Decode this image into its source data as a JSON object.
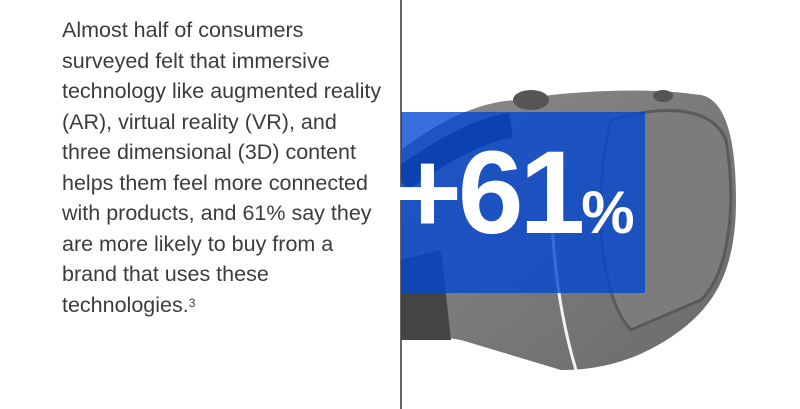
{
  "body_text": "Almost half of consumers surveyed felt that immersive technology like augmented reality (AR), virtual reality (VR), and three dimensional (3D) content helps them feel more connected with products, and 61% say they are more likely to buy from a brand that uses these technologies.",
  "footnote": "3",
  "stat": {
    "prefix": "+",
    "number": "61",
    "unit": "%"
  },
  "colors": {
    "accent": "#1f4fd0",
    "text": "#3c3c3c"
  },
  "image": "vr-headset"
}
